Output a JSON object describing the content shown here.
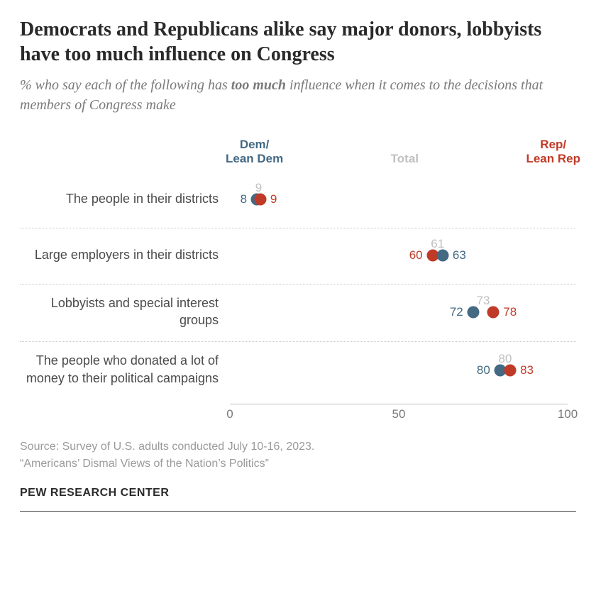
{
  "title": "Democrats and Republicans alike say major donors, lobbyists have too much influence on Congress",
  "subtitle_pre": "% who say each of the following has ",
  "subtitle_bold": "too much",
  "subtitle_post": " influence when it comes to the decisions that members of Congress make",
  "legend": {
    "dem": "Dem/\nLean Dem",
    "total": "Total",
    "rep": "Rep/\nLean Rep"
  },
  "chart": {
    "type": "dotplot",
    "xlim": [
      0,
      100
    ],
    "xticks": [
      0,
      50,
      100
    ],
    "colors": {
      "dem": "#436983",
      "rep": "#bf3b27",
      "total": "#c0c0c0",
      "text": "#4a4a4a",
      "divider": "#c8c8c8",
      "background": "#ffffff"
    },
    "marker_size": 17,
    "label_fontsize": 18,
    "value_fontsize": 17,
    "rows": [
      {
        "label": "The people in their districts",
        "dem": 8,
        "rep": 9,
        "total": 9,
        "dem_label_side": "left",
        "rep_label_side": "right"
      },
      {
        "label": "Large employers in their districts",
        "dem": 63,
        "rep": 60,
        "total": 61,
        "dem_label_side": "right",
        "rep_label_side": "left"
      },
      {
        "label": "Lobbyists and special interest groups",
        "dem": 72,
        "rep": 78,
        "total": 73,
        "dem_label_side": "left",
        "rep_label_side": "right"
      },
      {
        "label": "The people who donated a lot of money to their political campaigns",
        "dem": 80,
        "rep": 83,
        "total": 80,
        "dem_label_side": "left",
        "rep_label_side": "right"
      }
    ]
  },
  "source_line1": "Source: Survey of U.S. adults conducted July 10-16, 2023.",
  "source_line2": "“Americans’ Dismal Views of the Nation’s Politics”",
  "attribution": "PEW RESEARCH CENTER"
}
